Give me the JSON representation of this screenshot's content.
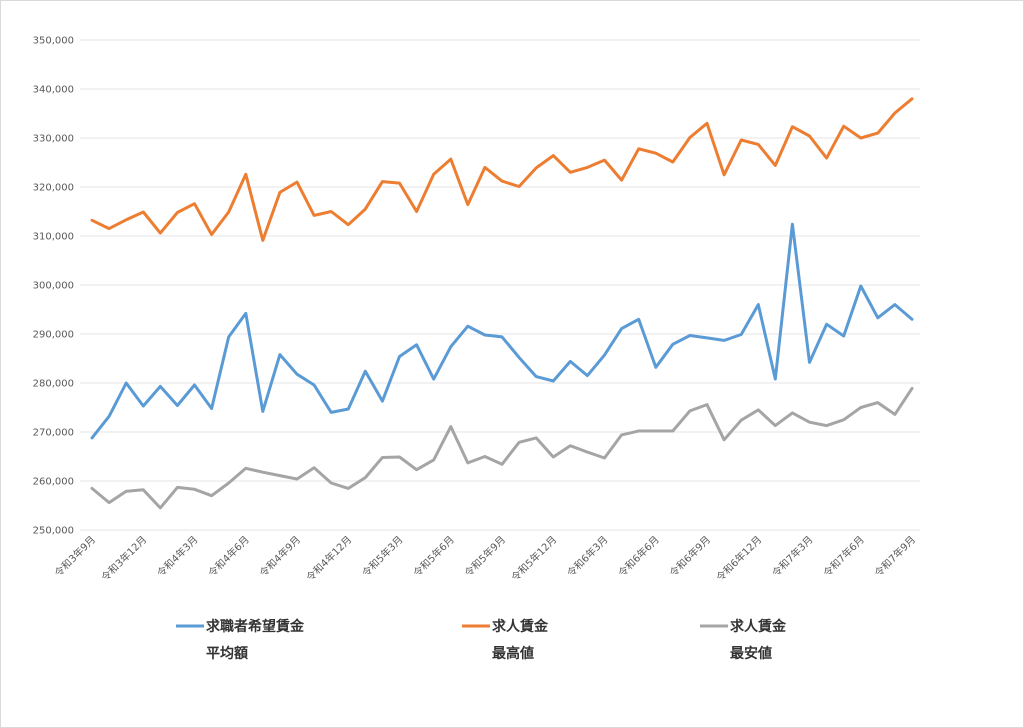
{
  "chart_data": {
    "type": "line",
    "title": "",
    "xlabel": "",
    "ylabel": "",
    "ylim": [
      250000,
      350000
    ],
    "y_ticks": [
      "250,000",
      "260,000",
      "270,000",
      "280,000",
      "290,000",
      "300,000",
      "310,000",
      "320,000",
      "330,000",
      "340,000",
      "350,000"
    ],
    "grid": true,
    "legend_position": "bottom",
    "x_tick_labels": [
      "令和3年9月",
      "令和3年12月",
      "令和4年3月",
      "令和4年6月",
      "令和4年9月",
      "令和4年12月",
      "令和5年3月",
      "令和5年6月",
      "令和5年9月",
      "令和5年12月",
      "令和6年3月",
      "令和6年6月",
      "令和6年9月",
      "令和6年12月",
      "令和7年3月",
      "令和7年6月",
      "令和7年9月"
    ],
    "series": [
      {
        "name": "求職者希望賃金",
        "name_line2": "平均額",
        "color": "#5b9bd5",
        "values": [
          268800,
          273200,
          280000,
          275300,
          279300,
          275400,
          279600,
          274800,
          289400,
          294200,
          274200,
          285800,
          281800,
          279600,
          274000,
          274700,
          282400,
          276300,
          285400,
          287800,
          280800,
          287400,
          291600,
          289800,
          289400,
          285200,
          281300,
          280400,
          284400,
          281500,
          285700,
          291100,
          293000,
          283200,
          287900,
          289700,
          289200,
          288700,
          289900,
          296000,
          280800,
          312400,
          284200,
          292000,
          289600,
          299800,
          293300,
          296000,
          293000
        ]
      },
      {
        "name": "求人賃金",
        "name_line2": "最高値",
        "color": "#ed7d31",
        "values": [
          313200,
          311500,
          313300,
          314900,
          310600,
          314800,
          316600,
          310300,
          314900,
          322600,
          309100,
          318900,
          321000,
          314200,
          315000,
          312300,
          315500,
          321100,
          320800,
          315000,
          322600,
          325700,
          316400,
          324000,
          321200,
          320100,
          323900,
          326400,
          323000,
          324000,
          325500,
          321400,
          327800,
          326900,
          325100,
          330100,
          333000,
          322500,
          329600,
          328700,
          324400,
          332300,
          330400,
          325900,
          332400,
          330000,
          331000,
          335100,
          338000
        ]
      },
      {
        "name": "求人賃金",
        "name_line2": "最安値",
        "color": "#a5a5a5",
        "values": [
          258500,
          255600,
          257900,
          258200,
          254500,
          258700,
          258300,
          257000,
          259600,
          262600,
          261800,
          261100,
          260400,
          262700,
          259600,
          258500,
          260700,
          264800,
          264900,
          262300,
          264300,
          271100,
          263700,
          265000,
          263400,
          267900,
          268800,
          264900,
          267200,
          265900,
          264700,
          269400,
          270200,
          270200,
          270200,
          274300,
          275600,
          268400,
          272400,
          274500,
          271300,
          273900,
          272000,
          271300,
          272500,
          275000,
          276000,
          273600,
          278900
        ]
      }
    ]
  }
}
